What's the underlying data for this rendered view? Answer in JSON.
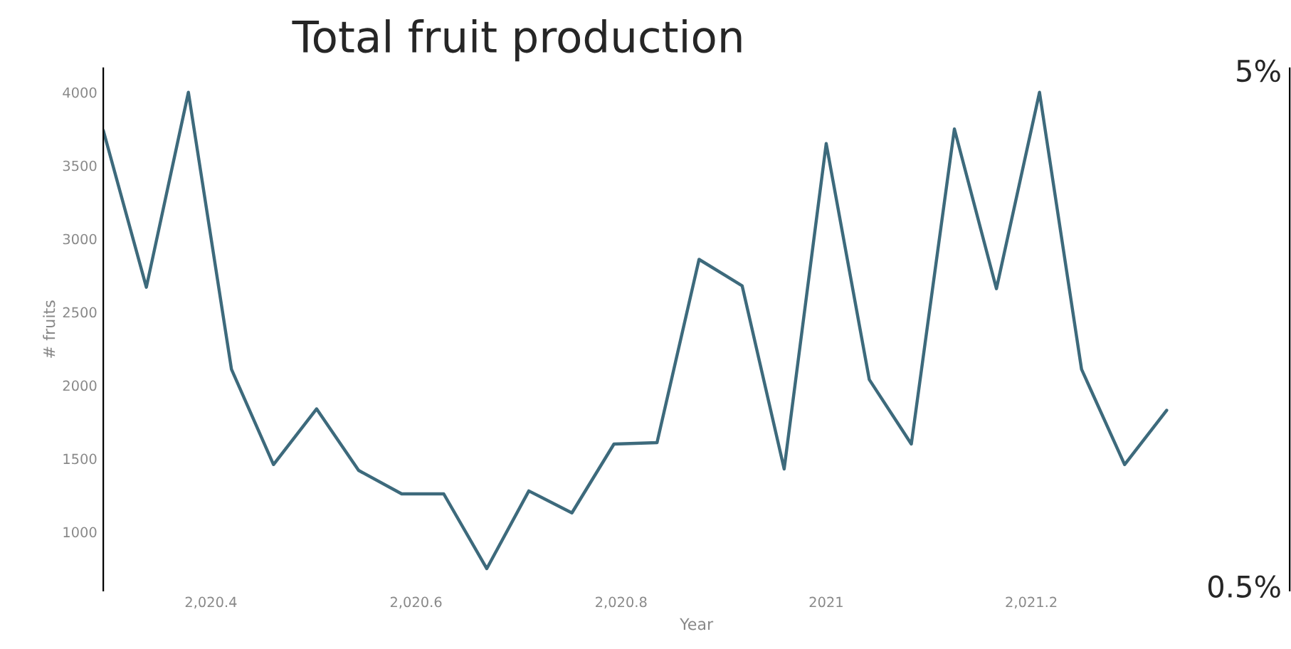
{
  "chart_data": {
    "type": "line",
    "title": "Total fruit production",
    "xlabel": "Year",
    "ylabel": "# fruits",
    "x": [
      2020.295,
      2020.337,
      2020.378,
      2020.42,
      2020.461,
      2020.503,
      2020.544,
      2020.586,
      2020.627,
      2020.669,
      2020.71,
      2020.752,
      2020.793,
      2020.835,
      2020.876,
      2020.918,
      2020.959,
      2021.0,
      2021.042,
      2021.083,
      2021.125,
      2021.166,
      2021.208,
      2021.249,
      2021.291,
      2021.332
    ],
    "series": [
      {
        "color": "#3d6a7c",
        "values": [
          3740,
          2670,
          4000,
          2110,
          1460,
          1840,
          1420,
          1260,
          1260,
          750,
          1280,
          1130,
          1600,
          1610,
          2860,
          2680,
          1430,
          3650,
          2040,
          1600,
          3750,
          2660,
          4000,
          2110,
          1460,
          1830
        ]
      }
    ],
    "xlim": [
      2020.295,
      2021.452
    ],
    "ylim": [
      600,
      4165
    ],
    "xticks": [
      {
        "value": 2020.4,
        "label": "2,020.4"
      },
      {
        "value": 2020.6,
        "label": "2,020.6"
      },
      {
        "value": 2020.8,
        "label": "2,020.8"
      },
      2021,
      {
        "value": 2021.2,
        "label": "2,021.2"
      }
    ],
    "yticks": [
      1000,
      1500,
      2000,
      2500,
      3000,
      3500,
      4000
    ],
    "log": "y2",
    "y2lim": [
      0.49,
      5.05
    ],
    "y2ticks": [
      {
        "value": 5,
        "label": "5%"
      },
      {
        "value": 0.5,
        "label": "0.5%"
      }
    ],
    "grid": false,
    "legend": false
  }
}
